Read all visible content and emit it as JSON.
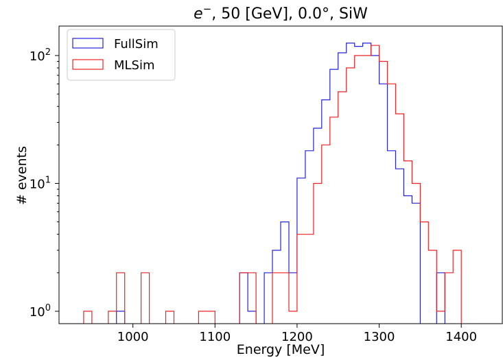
{
  "chart_data": {
    "type": "step-histogram",
    "title_prefix": "e",
    "title_superscript": "−",
    "title_rest": ", 50 [GeV], 0.0°, SiW",
    "xlabel": "Energy [MeV]",
    "ylabel": "# events",
    "y_scale": "log",
    "xlim": [
      910,
      1450
    ],
    "ylim": [
      0.8,
      170
    ],
    "x_ticks": [
      1000,
      1100,
      1200,
      1300,
      1400
    ],
    "x_tick_labels": [
      "1000",
      "1100",
      "1200",
      "1300",
      "1400"
    ],
    "y_ticks": [
      1,
      10,
      100
    ],
    "y_tick_labels": [
      {
        "base": "10",
        "exp": "0"
      },
      {
        "base": "10",
        "exp": "1"
      },
      {
        "base": "10",
        "exp": "2"
      }
    ],
    "legend_position": "upper-left",
    "bin_edges": [
      940,
      950,
      960,
      970,
      980,
      990,
      1000,
      1010,
      1020,
      1030,
      1040,
      1050,
      1060,
      1070,
      1080,
      1090,
      1100,
      1110,
      1120,
      1130,
      1140,
      1150,
      1160,
      1170,
      1180,
      1190,
      1200,
      1210,
      1220,
      1230,
      1240,
      1250,
      1260,
      1270,
      1280,
      1290,
      1300,
      1310,
      1320,
      1330,
      1340,
      1350,
      1360,
      1370,
      1380,
      1390,
      1400
    ],
    "series": [
      {
        "name": "FullSim",
        "color": "#2222dd",
        "values": [
          0,
          0,
          0,
          0,
          1,
          0,
          0,
          0,
          0,
          0,
          0,
          0,
          0,
          0,
          0,
          0,
          0,
          0,
          0,
          2,
          1,
          0,
          2,
          3,
          5,
          2,
          11,
          18,
          27,
          45,
          78,
          105,
          125,
          118,
          125,
          100,
          60,
          18,
          13,
          8,
          7,
          0,
          0,
          2,
          0,
          0
        ]
      },
      {
        "name": "MLSim",
        "color": "#ee2222",
        "values": [
          1,
          0,
          0,
          1,
          2,
          0,
          0,
          2,
          0,
          0,
          1,
          0,
          0,
          0,
          1,
          1,
          0,
          0,
          0,
          2,
          2,
          0,
          0,
          2,
          2,
          1,
          4,
          4,
          10,
          20,
          33,
          52,
          80,
          100,
          100,
          120,
          90,
          60,
          35,
          15,
          10,
          5,
          3,
          1,
          2,
          3
        ]
      }
    ]
  }
}
